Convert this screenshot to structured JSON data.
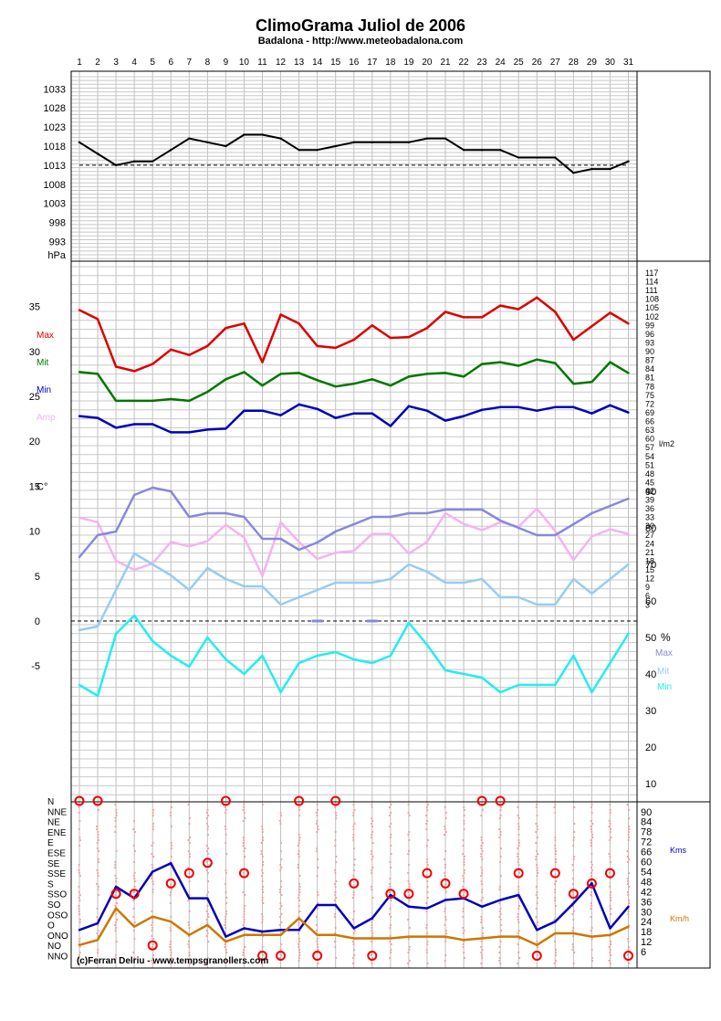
{
  "title": "ClimoGrama Juliol de 2006",
  "subtitle": "Badalona - http://www.meteobadalona.com",
  "credit": "(c)Ferran Delriu - www.tempsgranollers.com",
  "colors": {
    "pressure": "#000000",
    "max": "#dd0000",
    "mit": "#007700",
    "min": "#0000bb",
    "amp": "#f4b4f0",
    "hum_max": "#8888dd",
    "hum_mit": "#99ccee",
    "hum_min": "#22eeee",
    "wind_kms": "#0000bb",
    "wind_kmh": "#cc7700",
    "dir_marker": "#ee0000",
    "rain": "#8888dd"
  },
  "chart_data": {
    "type": "line",
    "days": [
      1,
      2,
      3,
      4,
      5,
      6,
      7,
      8,
      9,
      10,
      11,
      12,
      13,
      14,
      15,
      16,
      17,
      18,
      19,
      20,
      21,
      22,
      23,
      24,
      25,
      26,
      27,
      28,
      29,
      30,
      31
    ],
    "panels": [
      {
        "id": "pressure",
        "unit_label": "hPa",
        "ticks": [
          993,
          998,
          1003,
          1008,
          1013,
          1018,
          1023,
          1028,
          1033
        ],
        "ylim": [
          989,
          1039
        ],
        "reference_line": 1013,
        "series": [
          {
            "key": "pressure",
            "values": [
              1019,
              1016,
              1013,
              1014,
              1014,
              1017,
              1020,
              1019,
              1018,
              1021,
              1021,
              1020,
              1017,
              1017,
              1018,
              1019,
              1019,
              1019,
              1019,
              1020,
              1020,
              1017,
              1017,
              1017,
              1015,
              1015,
              1015,
              1011,
              1012,
              1012,
              1014
            ]
          }
        ]
      },
      {
        "id": "temperature",
        "unit_label": "C°",
        "left_ticks": [
          35,
          30,
          25,
          20,
          15,
          10,
          5,
          0,
          -5
        ],
        "right_label": "l/m2",
        "right_ticks": [
          117,
          114,
          111,
          108,
          105,
          102,
          99,
          96,
          93,
          90,
          87,
          84,
          81,
          78,
          75,
          72,
          69,
          66,
          63,
          60,
          57,
          54,
          51,
          48,
          45,
          42,
          39,
          36,
          33,
          30,
          27,
          24,
          21,
          18,
          15,
          12,
          9,
          6,
          3
        ],
        "series": [
          {
            "name": "Max",
            "key": "max",
            "values": [
              34.6,
              33.6,
              28.3,
              27.8,
              28.6,
              30.2,
              29.6,
              30.6,
              32.6,
              33.1,
              28.8,
              34.1,
              33.1,
              30.6,
              30.4,
              31.3,
              32.9,
              31.5,
              31.6,
              32.6,
              34.4,
              33.8,
              33.8,
              35.1,
              34.7,
              36.0,
              34.4,
              31.3,
              32.8,
              34.3,
              33.1
            ]
          },
          {
            "name": "Mit",
            "key": "mit",
            "values": [
              27.7,
              27.5,
              24.5,
              24.5,
              24.5,
              24.7,
              24.5,
              25.5,
              26.9,
              27.7,
              26.2,
              27.5,
              27.6,
              26.8,
              26.1,
              26.4,
              26.9,
              26.2,
              27.2,
              27.5,
              27.6,
              27.2,
              28.6,
              28.8,
              28.4,
              29.1,
              28.7,
              26.4,
              26.6,
              28.8,
              27.6
            ]
          },
          {
            "name": "Min",
            "key": "min",
            "values": [
              22.8,
              22.6,
              21.5,
              21.9,
              21.9,
              21.0,
              21.0,
              21.3,
              21.4,
              23.4,
              23.4,
              22.9,
              24.1,
              23.6,
              22.6,
              23.1,
              23.1,
              21.7,
              23.9,
              23.4,
              22.3,
              22.8,
              23.5,
              23.8,
              23.8,
              23.4,
              23.8,
              23.8,
              23.1,
              24.0,
              23.2
            ]
          },
          {
            "name": "Amp",
            "key": "amp",
            "values": [
              11.5,
              11.0,
              6.7,
              5.7,
              6.4,
              8.8,
              8.3,
              8.9,
              10.7,
              9.3,
              5.0,
              11.0,
              8.8,
              6.9,
              7.6,
              7.8,
              9.7,
              9.7,
              7.5,
              8.8,
              12.0,
              10.8,
              10.1,
              11.0,
              10.5,
              12.5,
              10.0,
              6.8,
              9.4,
              10.2,
              9.7
            ]
          }
        ],
        "rain_markers": [
          {
            "day": 14,
            "value": 0
          },
          {
            "day": 17,
            "value": 0
          }
        ]
      },
      {
        "id": "humidity",
        "unit_label": "%",
        "ticks": [
          90,
          80,
          70,
          60,
          50,
          40,
          30,
          20,
          10
        ],
        "ylim": [
          5,
          95
        ],
        "series": [
          {
            "name": "Max",
            "key": "hum_max",
            "values": [
              72,
              78,
              79,
              89,
              91,
              90,
              83,
              84,
              84,
              83,
              77,
              77,
              74,
              76,
              79,
              81,
              83,
              83,
              84,
              84,
              85,
              85,
              85,
              82,
              80,
              78,
              78,
              81,
              84,
              86,
              88
            ]
          },
          {
            "name": "Mit",
            "key": "hum_mit",
            "values": [
              52,
              53,
              63,
              73,
              70,
              67,
              63,
              69,
              66,
              64,
              64,
              59,
              61,
              63,
              65,
              65,
              65,
              66,
              70,
              68,
              65,
              65,
              66,
              61,
              61,
              59,
              59,
              66,
              62,
              66,
              70
            ]
          },
          {
            "name": "Min",
            "key": "hum_min",
            "values": [
              37,
              34,
              51,
              56,
              49,
              45,
              42,
              50,
              44,
              40,
              45,
              35,
              43,
              45,
              46,
              44,
              43,
              45,
              54,
              48,
              41,
              40,
              39,
              35,
              37,
              37,
              37,
              45,
              35,
              43,
              51
            ]
          }
        ]
      },
      {
        "id": "wind",
        "directions": [
          "N",
          "NNE",
          "NE",
          "ENE",
          "E",
          "ESE",
          "SE",
          "SSE",
          "S",
          "SSO",
          "SO",
          "OSO",
          "O",
          "ONO",
          "NO",
          "NNO"
        ],
        "right_ticks": [
          90,
          84,
          78,
          72,
          66,
          60,
          54,
          48,
          42,
          36,
          30,
          24,
          18,
          12,
          6
        ],
        "ylim": [
          0,
          95
        ],
        "series": [
          {
            "name": "Kms",
            "key": "wind_kms",
            "values": [
              19,
              23,
              45,
              38,
              54,
              59,
              38,
              38,
              15,
              20,
              18,
              19,
              19,
              34,
              34,
              20,
              26,
              40,
              33,
              32,
              37,
              38,
              33,
              37,
              40,
              19,
              24,
              35,
              47,
              20,
              33
            ]
          },
          {
            "name": "Km/h",
            "key": "wind_kmh",
            "values": [
              10,
              13,
              32,
              21,
              27,
              24,
              16,
              22,
              12,
              16,
              16,
              16,
              26,
              16,
              16,
              14,
              14,
              14,
              15,
              15,
              15,
              13,
              14,
              15,
              15,
              10,
              17,
              17,
              15,
              16,
              21
            ]
          }
        ],
        "dominant_direction": [
          "N",
          "N",
          "SSO",
          "SSO",
          "NO",
          "S",
          "SSE",
          "SE",
          "N",
          "SSE",
          "NNO",
          "NNO",
          "N",
          "NNO",
          "N",
          "S",
          "NNO",
          "SSO",
          "SSO",
          "SSE",
          "S",
          "SSO",
          "N",
          "N",
          "SSE",
          "NNO",
          "SSE",
          "SSO",
          "S",
          "SSE",
          "NNO"
        ]
      }
    ]
  }
}
